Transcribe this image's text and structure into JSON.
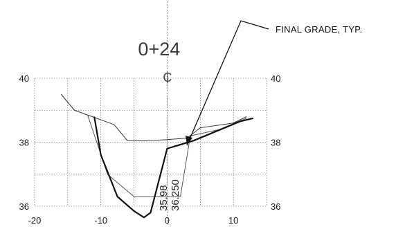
{
  "station_label": "0+24",
  "centerline_label": "₵",
  "callout": {
    "text": "FINAL GRADE, TYP."
  },
  "elevation_labels": [
    "35.98",
    "36.250"
  ],
  "chart_data": {
    "type": "line",
    "title": "0+24",
    "xlabel": "",
    "ylabel": "",
    "xlim": [
      -20,
      15
    ],
    "ylim": [
      36,
      40
    ],
    "x_ticks": [
      "-20",
      "-10",
      "0",
      "10"
    ],
    "y_ticks_left": [
      "36",
      "38",
      "40"
    ],
    "y_ticks_right": [
      "36",
      "38",
      "40"
    ],
    "grid": true,
    "series": [
      {
        "x": [
          -16,
          -14,
          -8,
          -6,
          -3,
          0,
          3,
          5,
          10,
          12
        ],
        "y": [
          39.5,
          39.0,
          38.55,
          38.05,
          38.05,
          38.08,
          38.13,
          38.45,
          38.6,
          38.8
        ]
      },
      {
        "x": [
          -14,
          -12,
          -9,
          -5,
          -4.5,
          2,
          3.5,
          8,
          12
        ],
        "y": [
          39.0,
          38.85,
          37.0,
          36.3,
          36.3,
          36.3,
          38.2,
          38.4,
          38.75
        ]
      },
      {
        "x": [
          -11,
          -10,
          -7.5,
          -5,
          -3.5,
          -2.5,
          0,
          4,
          11,
          13
        ],
        "y": [
          38.8,
          37.6,
          36.3,
          35.85,
          35.65,
          35.8,
          37.8,
          38.05,
          38.65,
          38.75
        ]
      }
    ]
  }
}
